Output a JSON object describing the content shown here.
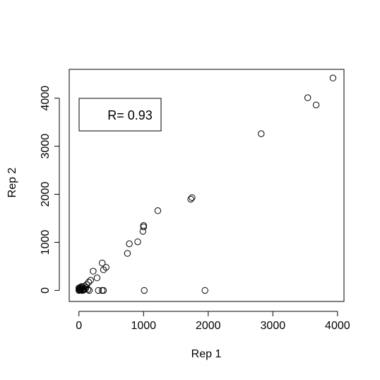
{
  "chart_data": {
    "type": "scatter",
    "title": "",
    "xlabel": "Rep 1",
    "ylabel": "Rep 2",
    "xlim": [
      -150,
      4100
    ],
    "ylim": [
      -230,
      4600
    ],
    "xticks": [
      0,
      1000,
      2000,
      3000,
      4000
    ],
    "yticks": [
      0,
      1000,
      2000,
      3000,
      4000
    ],
    "grid": false,
    "annotation": "R= 0.93",
    "annotation_position": "top-left",
    "points": [
      [
        3930,
        4420
      ],
      [
        3540,
        4010
      ],
      [
        3670,
        3860
      ],
      [
        2820,
        3260
      ],
      [
        1730,
        1900
      ],
      [
        1750,
        1930
      ],
      [
        1220,
        1660
      ],
      [
        1000,
        1350
      ],
      [
        1000,
        1320
      ],
      [
        990,
        1230
      ],
      [
        780,
        970
      ],
      [
        910,
        1010
      ],
      [
        750,
        770
      ],
      [
        360,
        570
      ],
      [
        420,
        480
      ],
      [
        380,
        430
      ],
      [
        220,
        400
      ],
      [
        280,
        260
      ],
      [
        180,
        210
      ],
      [
        150,
        170
      ],
      [
        120,
        120
      ],
      [
        90,
        90
      ],
      [
        60,
        70
      ],
      [
        40,
        50
      ],
      [
        20,
        20
      ],
      [
        10,
        10
      ],
      [
        0,
        0
      ],
      [
        5,
        30
      ],
      [
        30,
        15
      ],
      [
        50,
        0
      ],
      [
        70,
        5
      ],
      [
        100,
        30
      ],
      [
        140,
        20
      ],
      [
        160,
        0
      ],
      [
        40,
        80
      ],
      [
        80,
        40
      ],
      [
        110,
        60
      ],
      [
        0,
        50
      ],
      [
        20,
        60
      ],
      [
        60,
        20
      ],
      [
        300,
        0
      ],
      [
        360,
        0
      ],
      [
        380,
        0
      ],
      [
        1010,
        0
      ],
      [
        1950,
        0
      ]
    ]
  }
}
